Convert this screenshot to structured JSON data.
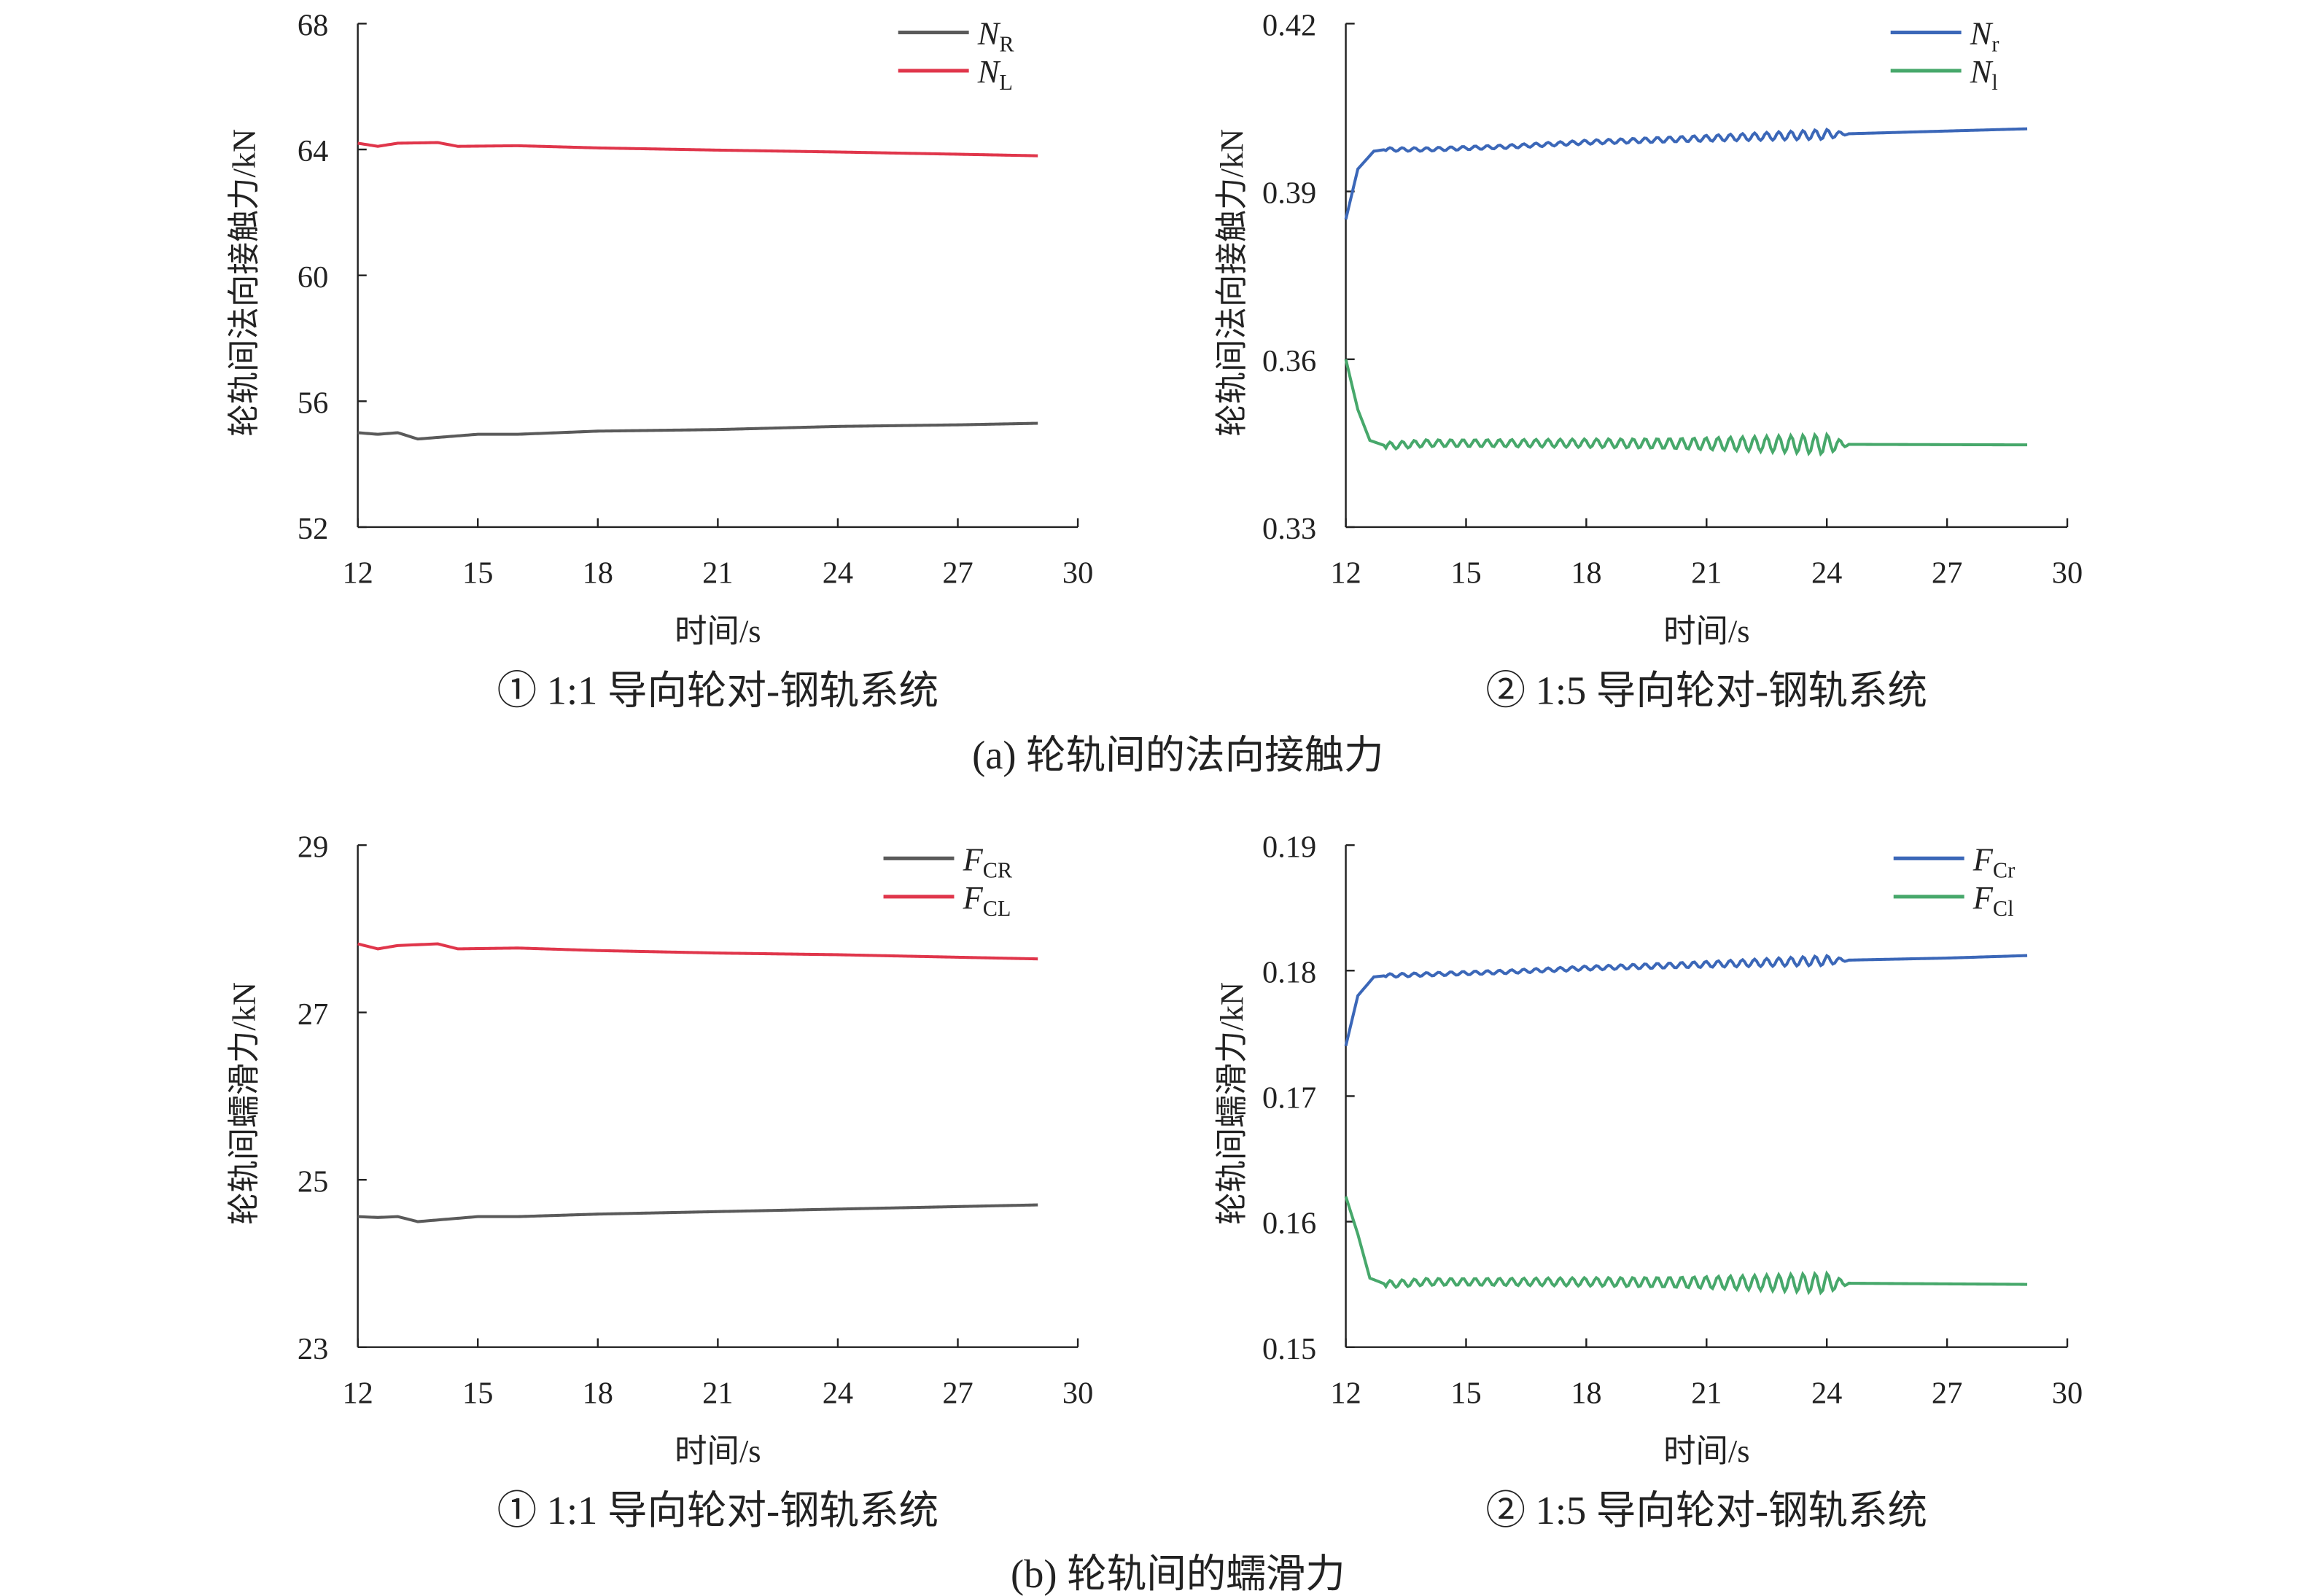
{
  "captions": {
    "a": "(a) 轮轨间的法向接触力",
    "b": "(b) 轮轨间的蠕滑力"
  },
  "chart_data": [
    {
      "type": "line",
      "subtitle": "① 1:1 导向轮对-钢轨系统",
      "xlabel": "时间/s",
      "ylabel": "轮轨间法向接触力/kN",
      "xlim": [
        12,
        30
      ],
      "xticks": [
        "12",
        "15",
        "18",
        "21",
        "24",
        "27",
        "30"
      ],
      "ylim": [
        52,
        68
      ],
      "yticks": [
        "52",
        "56",
        "60",
        "64",
        "68"
      ],
      "legend": "top-right",
      "series": [
        {
          "name": "N",
          "sub": "R",
          "color": "#5a5a5a",
          "points": [
            [
              12,
              55.0
            ],
            [
              12.5,
              54.95
            ],
            [
              13,
              55.0
            ],
            [
              13.5,
              54.8
            ],
            [
              14,
              54.85
            ],
            [
              15,
              54.95
            ],
            [
              16,
              54.95
            ],
            [
              18,
              55.05
            ],
            [
              21,
              55.1
            ],
            [
              24,
              55.2
            ],
            [
              27,
              55.25
            ],
            [
              29,
              55.3
            ]
          ]
        },
        {
          "name": "N",
          "sub": "L",
          "color": "#e0364b",
          "points": [
            [
              12,
              64.2
            ],
            [
              12.5,
              64.1
            ],
            [
              13,
              64.2
            ],
            [
              14,
              64.22
            ],
            [
              14.5,
              64.1
            ],
            [
              16,
              64.12
            ],
            [
              18,
              64.05
            ],
            [
              21,
              63.98
            ],
            [
              24,
              63.92
            ],
            [
              27,
              63.85
            ],
            [
              29,
              63.8
            ]
          ]
        }
      ]
    },
    {
      "type": "line",
      "subtitle": "② 1:5 导向轮对-钢轨系统",
      "xlabel": "时间/s",
      "ylabel": "轮轨间法向接触力/kN",
      "xlim": [
        12,
        30
      ],
      "xticks": [
        "12",
        "15",
        "18",
        "21",
        "24",
        "27",
        "30"
      ],
      "ylim": [
        0.33,
        0.42
      ],
      "yticks": [
        "0.33",
        "0.36",
        "0.39",
        "0.42"
      ],
      "legend": "top-right",
      "series": [
        {
          "name": "N",
          "sub": "r",
          "color": "#3b67b8",
          "points": [
            [
              12,
              0.385
            ],
            [
              12.3,
              0.394
            ],
            [
              12.7,
              0.3972
            ],
            [
              13,
              0.3975
            ],
            [
              14,
              0.3975
            ],
            [
              16,
              0.398
            ],
            [
              18,
              0.3988
            ],
            [
              21,
              0.3995
            ],
            [
              24,
              0.4002
            ],
            [
              27,
              0.4008
            ],
            [
              29,
              0.4012
            ]
          ],
          "oscillation": {
            "from": 13,
            "to": 24.6,
            "peak": 24,
            "amplitude": 0.0009
          }
        },
        {
          "name": "N",
          "sub": "l",
          "color": "#47a86b",
          "points": [
            [
              12,
              0.36
            ],
            [
              12.3,
              0.351
            ],
            [
              12.6,
              0.3455
            ],
            [
              13,
              0.3445
            ],
            [
              14,
              0.345
            ],
            [
              18,
              0.345
            ],
            [
              24,
              0.3448
            ],
            [
              29,
              0.3447
            ]
          ],
          "oscillation": {
            "from": 13,
            "to": 24.6,
            "peak": 24,
            "amplitude": 0.0018
          }
        }
      ]
    },
    {
      "type": "line",
      "subtitle": "① 1:1 导向轮对-钢轨系统",
      "xlabel": "时间/s",
      "ylabel": "轮轨间蠕滑力/kN",
      "xlim": [
        12,
        30
      ],
      "xticks": [
        "12",
        "15",
        "18",
        "21",
        "24",
        "27",
        "30"
      ],
      "ylim": [
        23,
        29
      ],
      "yticks": [
        "23",
        "25",
        "27",
        "29"
      ],
      "legend": "top-right",
      "series": [
        {
          "name": "F",
          "sub": "CR",
          "color": "#5a5a5a",
          "points": [
            [
              12,
              24.56
            ],
            [
              12.5,
              24.55
            ],
            [
              13,
              24.56
            ],
            [
              13.5,
              24.5
            ],
            [
              14,
              24.52
            ],
            [
              15,
              24.56
            ],
            [
              16,
              24.56
            ],
            [
              18,
              24.59
            ],
            [
              21,
              24.62
            ],
            [
              24,
              24.65
            ],
            [
              27,
              24.68
            ],
            [
              29,
              24.7
            ]
          ]
        },
        {
          "name": "F",
          "sub": "CL",
          "color": "#e0364b",
          "points": [
            [
              12,
              27.82
            ],
            [
              12.5,
              27.76
            ],
            [
              13,
              27.8
            ],
            [
              14,
              27.82
            ],
            [
              14.5,
              27.76
            ],
            [
              16,
              27.77
            ],
            [
              18,
              27.74
            ],
            [
              21,
              27.71
            ],
            [
              24,
              27.69
            ],
            [
              27,
              27.66
            ],
            [
              29,
              27.64
            ]
          ]
        }
      ]
    },
    {
      "type": "line",
      "subtitle": "② 1:5 导向轮对-钢轨系统",
      "xlabel": "时间/s",
      "ylabel": "轮轨间蠕滑力/kN",
      "xlim": [
        12,
        30
      ],
      "xticks": [
        "12",
        "15",
        "18",
        "21",
        "24",
        "27",
        "30"
      ],
      "ylim": [
        0.15,
        0.19
      ],
      "yticks": [
        "0.15",
        "0.16",
        "0.17",
        "0.18",
        "0.19"
      ],
      "legend": "top-right",
      "series": [
        {
          "name": "F",
          "sub": "Cr",
          "color": "#3b67b8",
          "points": [
            [
              12,
              0.174
            ],
            [
              12.3,
              0.178
            ],
            [
              12.7,
              0.1795
            ],
            [
              13,
              0.1796
            ],
            [
              14,
              0.1797
            ],
            [
              16,
              0.1799
            ],
            [
              18,
              0.1802
            ],
            [
              21,
              0.1805
            ],
            [
              24,
              0.1808
            ],
            [
              27,
              0.181
            ],
            [
              29,
              0.1812
            ]
          ],
          "oscillation": {
            "from": 13,
            "to": 24.6,
            "peak": 24,
            "amplitude": 0.0004
          }
        },
        {
          "name": "F",
          "sub": "Cl",
          "color": "#47a86b",
          "points": [
            [
              12,
              0.162
            ],
            [
              12.3,
              0.159
            ],
            [
              12.6,
              0.1555
            ],
            [
              13,
              0.155
            ],
            [
              14,
              0.1552
            ],
            [
              18,
              0.1552
            ],
            [
              24,
              0.1551
            ],
            [
              29,
              0.155
            ]
          ],
          "oscillation": {
            "from": 13,
            "to": 24.6,
            "peak": 24,
            "amplitude": 0.0008
          }
        }
      ]
    }
  ]
}
